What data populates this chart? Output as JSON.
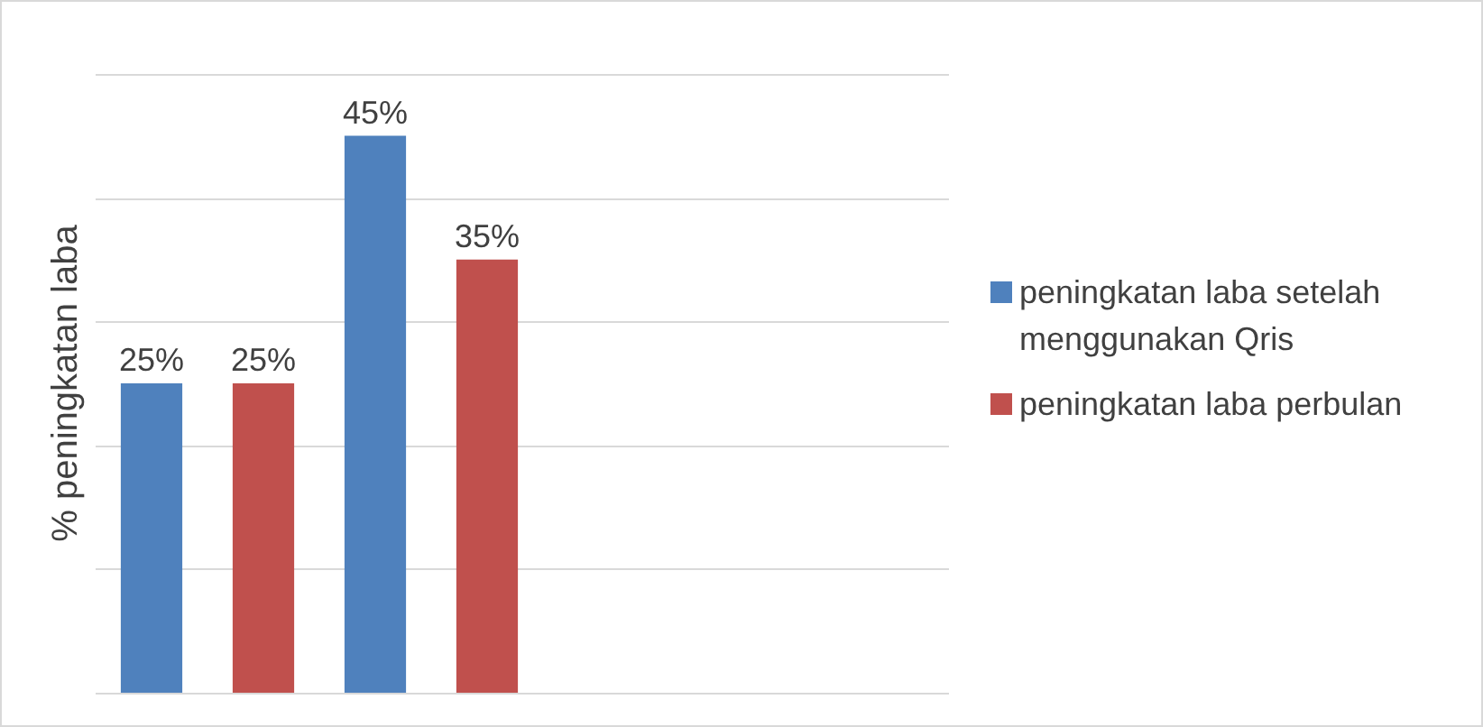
{
  "chart_data": {
    "type": "bar",
    "ylabel": "% peningkatan laba",
    "categories": [
      null,
      null
    ],
    "series": [
      {
        "name": "peningkatan laba setelah menggunakan Qris",
        "color": "#4f81bd",
        "values": [
          25,
          45
        ],
        "value_labels": [
          "25%",
          "45%"
        ]
      },
      {
        "name": "peningkatan laba perbulan",
        "color": "#c0504d",
        "values": [
          25,
          35
        ],
        "value_labels": [
          "25%",
          "35%"
        ]
      }
    ],
    "ylim": [
      0,
      50
    ],
    "yticks": [
      {
        "value": 0,
        "label": null
      },
      {
        "value": 10,
        "label": null
      },
      {
        "value": 20,
        "label": null
      },
      {
        "value": 30,
        "label": null
      },
      {
        "value": 40,
        "label": null
      },
      {
        "value": 50,
        "label": null
      }
    ],
    "grid": "y",
    "legend": "right",
    "tick_labels": false
  }
}
